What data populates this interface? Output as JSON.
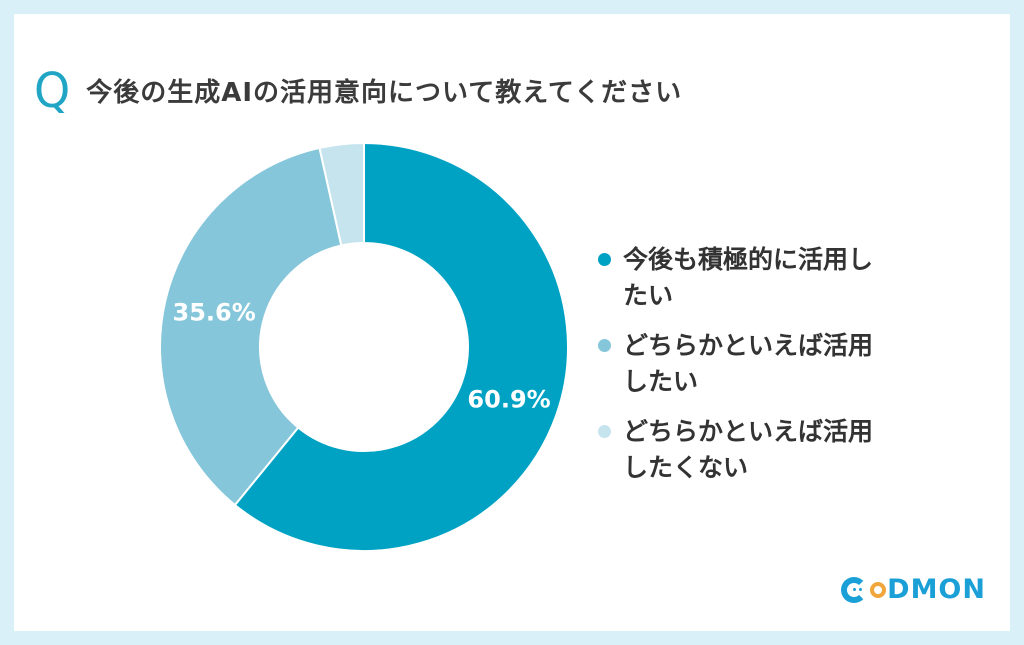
{
  "header": {
    "q_mark": "Q",
    "question": "今後の生成AIの活用意向について教えてください"
  },
  "chart_data": {
    "type": "pie",
    "donut": true,
    "categories": [
      "今後も積極的に活用したい",
      "どちらかといえば活用したい",
      "どちらかといえば活用したくない"
    ],
    "values": [
      60.9,
      35.6,
      3.5
    ],
    "value_labels": [
      "60.9%",
      "35.6%",
      ""
    ],
    "colors": [
      "#00a2c4",
      "#85c6da",
      "#c6e4ee"
    ],
    "legend_position": "right"
  },
  "legend": {
    "items": [
      {
        "label": "今後も積極的に活用したい",
        "color": "#00a2c4"
      },
      {
        "label": "どちらかといえば活用したい",
        "color": "#85c6da"
      },
      {
        "label": "どちらかといえば活用したくない",
        "color": "#c6e4ee"
      }
    ]
  },
  "logo": {
    "text_c": "C",
    "text_o": "o",
    "text_rest": "DMON",
    "primary_color": "#1a9fd6",
    "accent_color": "#f0a63a"
  }
}
